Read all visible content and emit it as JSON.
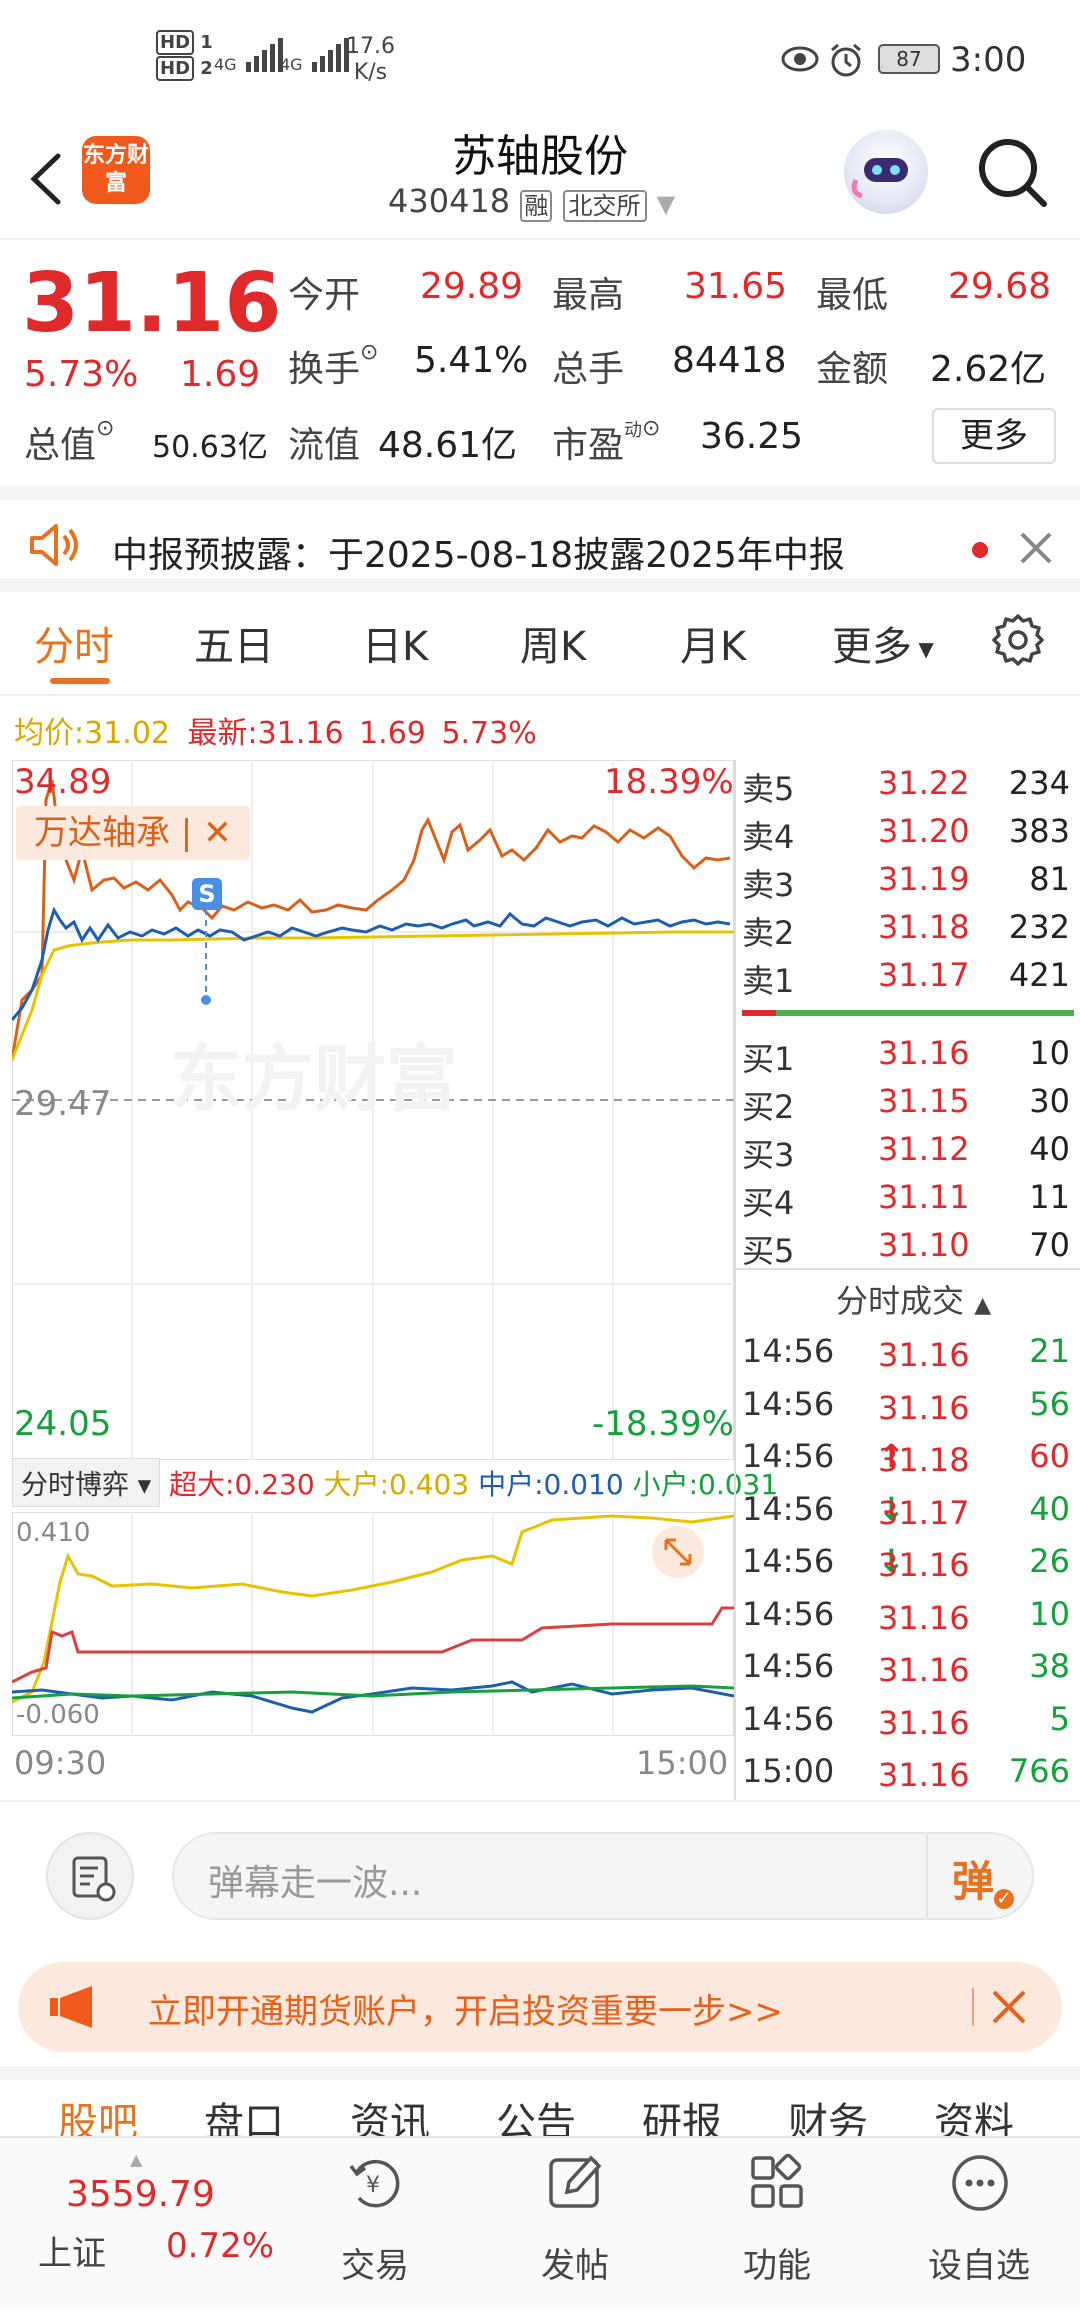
{
  "status_bar": {
    "net_speed": "17.6",
    "net_unit": "K/s",
    "battery": "87",
    "time": "3:00",
    "sim1": "HD",
    "sim2": "HD",
    "signal1": "4G",
    "signal2": "4G"
  },
  "header": {
    "app_logo_text": "东方财富",
    "stock_name": "苏轴股份",
    "stock_code": "430418",
    "badge_margin": "融",
    "badge_exchange": "北交所"
  },
  "quote": {
    "price": "31.16",
    "change_pct": "5.73%",
    "change_amt": "1.69",
    "open_label": "今开",
    "open": "29.89",
    "high_label": "最高",
    "high": "31.65",
    "low_label": "最低",
    "low": "29.68",
    "turnover_label": "换手",
    "turnover": "5.41%",
    "volume_label": "总手",
    "volume": "84418",
    "amount_label": "金额",
    "amount": "2.62亿",
    "mktcap_label": "总值",
    "mktcap": "50.63亿",
    "float_label": "流值",
    "float_cap": "48.61亿",
    "pe_label": "市盈",
    "pe_sup": "动",
    "pe": "36.25",
    "more_button": "更多"
  },
  "notice": {
    "text": "中报预披露：于2025-08-18披露2025年中报"
  },
  "tabs": [
    {
      "label": "分时"
    },
    {
      "label": "五日"
    },
    {
      "label": "日K"
    },
    {
      "label": "周K"
    },
    {
      "label": "月K"
    },
    {
      "label": "更多"
    }
  ],
  "chart_info": {
    "avg_label": "均价:",
    "avg_value": "31.02",
    "latest_label": "最新:",
    "latest_value": "31.16",
    "latest_change": "1.69",
    "latest_pct": "5.73%"
  },
  "chart": {
    "y_max": "34.89",
    "y_max_pct": "18.39%",
    "y_min": "24.05",
    "y_min_pct": "-18.39%",
    "prev_close": "29.47",
    "compare_tag": "万达轴承",
    "watermark": "东方财富",
    "signal_marker": "S"
  },
  "indicator": {
    "selector": "分时博弈",
    "super_label": "超大:",
    "super_value": "0.230",
    "big_label": "大户:",
    "big_value": "0.403",
    "mid_label": "中户:",
    "mid_value": "0.010",
    "small_label": "小户:",
    "small_value": "0.031",
    "y_max": "0.410",
    "y_min": "-0.060",
    "time_start": "09:30",
    "time_end": "15:00"
  },
  "order_book": {
    "asks": [
      {
        "label": "卖5",
        "price": "31.22",
        "vol": "234"
      },
      {
        "label": "卖4",
        "price": "31.20",
        "vol": "383"
      },
      {
        "label": "卖3",
        "price": "31.19",
        "vol": "81"
      },
      {
        "label": "卖2",
        "price": "31.18",
        "vol": "232"
      },
      {
        "label": "卖1",
        "price": "31.17",
        "vol": "421"
      }
    ],
    "bids": [
      {
        "label": "买1",
        "price": "31.16",
        "vol": "10"
      },
      {
        "label": "买2",
        "price": "31.15",
        "vol": "30"
      },
      {
        "label": "买3",
        "price": "31.12",
        "vol": "40"
      },
      {
        "label": "买4",
        "price": "31.11",
        "vol": "11"
      },
      {
        "label": "买5",
        "price": "31.10",
        "vol": "70"
      }
    ]
  },
  "trades": {
    "title": "分时成交",
    "rows": [
      {
        "time": "14:56",
        "price": "31.16",
        "arrow": "",
        "vol": "21",
        "dir": "buy"
      },
      {
        "time": "14:56",
        "price": "31.16",
        "arrow": "",
        "vol": "56",
        "dir": "buy"
      },
      {
        "time": "14:56",
        "price": "31.18",
        "arrow": "↑",
        "vol": "60",
        "dir": "sell"
      },
      {
        "time": "14:56",
        "price": "31.17",
        "arrow": "↓",
        "vol": "40",
        "dir": "buy"
      },
      {
        "time": "14:56",
        "price": "31.16",
        "arrow": "↓",
        "vol": "26",
        "dir": "buy"
      },
      {
        "time": "14:56",
        "price": "31.16",
        "arrow": "",
        "vol": "10",
        "dir": "buy"
      },
      {
        "time": "14:56",
        "price": "31.16",
        "arrow": "",
        "vol": "38",
        "dir": "buy"
      },
      {
        "time": "14:56",
        "price": "31.16",
        "arrow": "",
        "vol": "5",
        "dir": "buy"
      },
      {
        "time": "15:00",
        "price": "31.16",
        "arrow": "",
        "vol": "766",
        "dir": "buy"
      }
    ]
  },
  "danmu": {
    "placeholder": "弹幕走一波...",
    "send_label": "弹"
  },
  "promo": {
    "text": "立即开通期货账户，开启投资重要一步>>"
  },
  "subtabs": [
    {
      "label": "股吧"
    },
    {
      "label": "盘口"
    },
    {
      "label": "资讯"
    },
    {
      "label": "公告"
    },
    {
      "label": "研报"
    },
    {
      "label": "财务"
    },
    {
      "label": "资料"
    }
  ],
  "bottom_nav": {
    "index_value": "3559.79",
    "index_name": "上证",
    "index_pct": "0.72%",
    "items": [
      {
        "label": "交易",
        "icon": "trade-icon"
      },
      {
        "label": "发帖",
        "icon": "post-icon"
      },
      {
        "label": "功能",
        "icon": "apps-icon"
      },
      {
        "label": "设自选",
        "icon": "watchlist-icon"
      }
    ]
  },
  "colors": {
    "up": "#e0292b",
    "down": "#16a03c",
    "accent": "#e8721d",
    "price_line": "#1e5eb0",
    "avg_line": "#e8c200",
    "compare_line": "#d9601a"
  }
}
